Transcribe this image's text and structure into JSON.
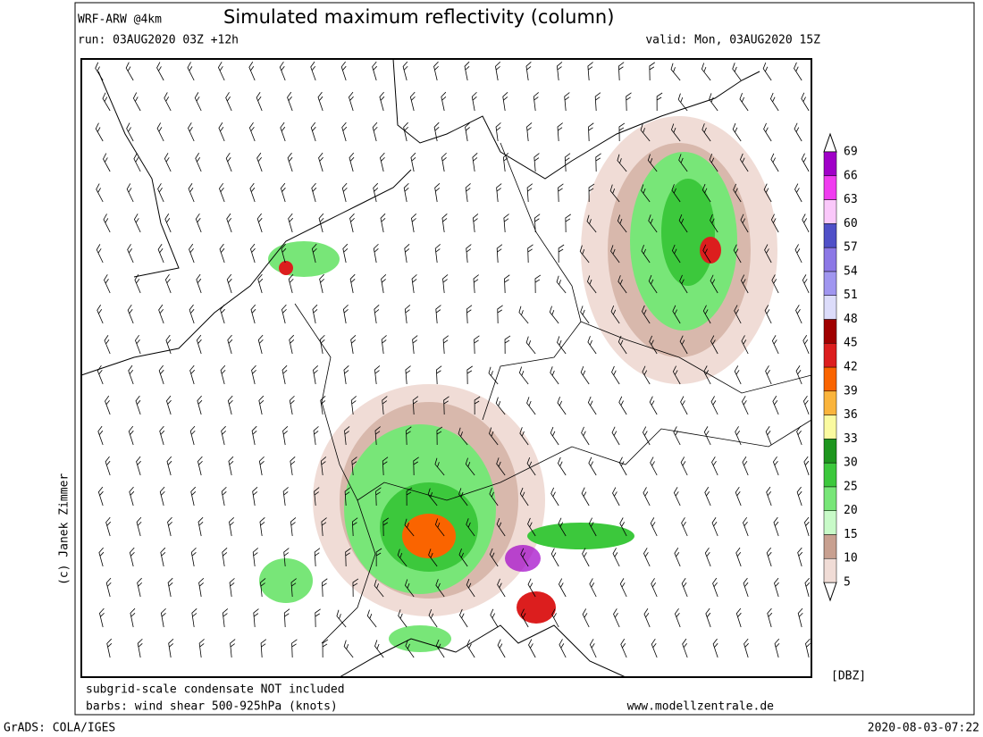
{
  "header": {
    "model": "WRF-ARW @4km",
    "title": "Simulated maximum reflectivity (column)",
    "run": "run: 03AUG2020 03Z +12h",
    "valid": "valid: Mon, 03AUG2020 15Z"
  },
  "credit": "(c) Janek Zimmer",
  "footer": {
    "note1": "subgrid-scale condensate NOT included",
    "note2": "barbs: wind shear 500-925hPa (knots)",
    "website": "www.modellzentrale.de",
    "software": "GrADS: COLA/IGES",
    "timestamp": "2020-08-03-07:22"
  },
  "colorbar": {
    "unit": "[DBZ]",
    "levels": [
      5,
      10,
      15,
      20,
      25,
      30,
      33,
      36,
      39,
      42,
      45,
      48,
      51,
      54,
      57,
      60,
      63,
      66,
      69
    ],
    "colors": [
      "#f0dcd6",
      "#c8a090",
      "#c8fac8",
      "#78e678",
      "#3cc83c",
      "#1e961e",
      "#fafaa0",
      "#fab43c",
      "#fa6400",
      "#dc1e1e",
      "#a00000",
      "#dcdcfa",
      "#a096f0",
      "#8c78e6",
      "#5050c8",
      "#fac8fa",
      "#f03cf0",
      "#a000c8"
    ]
  }
}
